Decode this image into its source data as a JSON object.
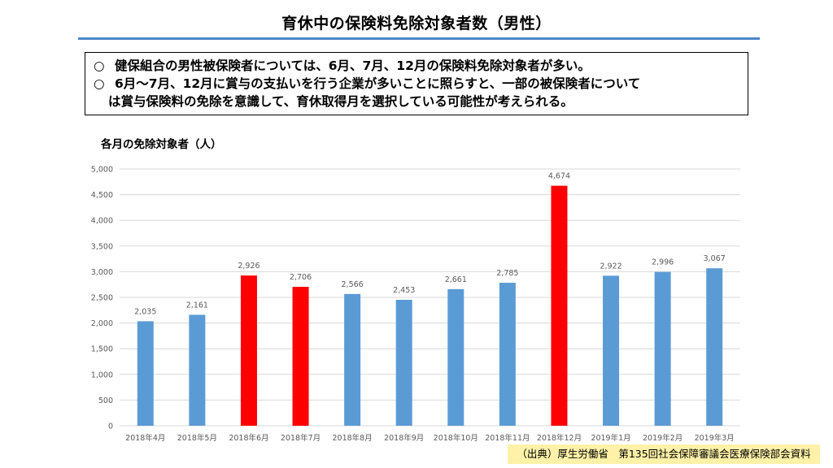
{
  "page": {
    "title": "育休中の保険料免除対象者数（男性）",
    "notes": [
      {
        "bullet": "○",
        "text": "健保組合の男性被保険者については、6月、7月、12月の保険料免除対象者が多い。"
      },
      {
        "bullet": "○",
        "text": "6月～7月、12月に賞与の支払いを行う企業が多いことに照らすと、一部の被保険者について"
      },
      {
        "bullet": "",
        "text": "は賞与保険料の免除を意識して、育休取得月を選択している可能性が考えられる。"
      }
    ],
    "chart_caption": "各月の免除対象者（人）",
    "source": "（出典）厚生労働省　第135回社会保障審議会医療保険部会資料"
  },
  "colors": {
    "title_rule": "#4a86c8",
    "bar_default": "#5b9bd5",
    "bar_highlight": "#ff0000",
    "source_bg": "#fff2a8",
    "grid": "#d9d9d9",
    "tick_text": "#595959",
    "label_text": "#595959"
  },
  "chart_data": {
    "type": "bar",
    "categories": [
      "2018年4月",
      "2018年5月",
      "2018年6月",
      "2018年7月",
      "2018年8月",
      "2018年9月",
      "2018年10月",
      "2018年11月",
      "2018年12月",
      "2019年1月",
      "2019年2月",
      "2019年3月"
    ],
    "values": [
      2035,
      2161,
      2926,
      2706,
      2566,
      2453,
      2661,
      2785,
      4674,
      2922,
      2996,
      3067
    ],
    "value_labels": [
      "2,035",
      "2,161",
      "2,926",
      "2,706",
      "2,566",
      "2,453",
      "2,661",
      "2,785",
      "4,674",
      "2,922",
      "2,996",
      "3,067"
    ],
    "highlighted": [
      "2018年6月",
      "2018年7月",
      "2018年12月"
    ],
    "ylim": [
      0,
      5000
    ],
    "yticks": [
      0,
      500,
      1000,
      1500,
      2000,
      2500,
      3000,
      3500,
      4000,
      4500,
      5000
    ],
    "ytick_labels": [
      "0",
      "500",
      "1,000",
      "1,500",
      "2,000",
      "2,500",
      "3,000",
      "3,500",
      "4,000",
      "4,500",
      "5,000"
    ],
    "grid": true,
    "legend": "none"
  }
}
